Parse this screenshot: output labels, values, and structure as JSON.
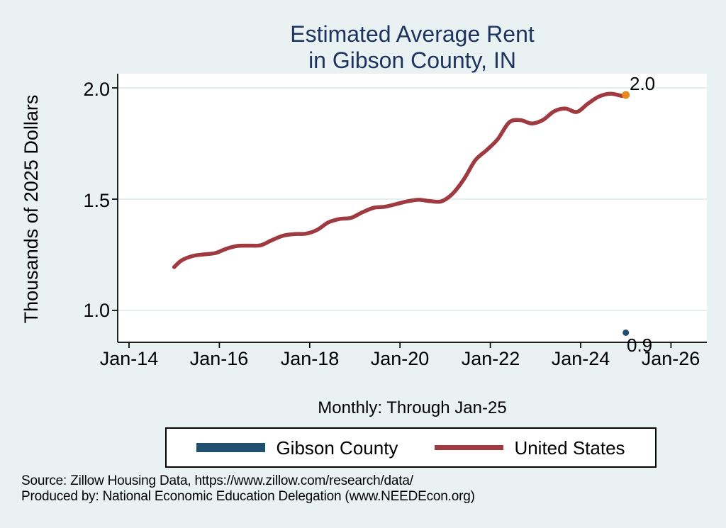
{
  "title": {
    "line1": "Estimated Average Rent",
    "line2": "in Gibson County, IN"
  },
  "subtitle": "Monthly: Through Jan-25",
  "y_axis": {
    "label": "Thousands of 2025 Dollars",
    "ticks": [
      "2.0",
      "1.5",
      "1.0"
    ]
  },
  "x_axis": {
    "ticks": [
      "Jan-14",
      "Jan-16",
      "Jan-18",
      "Jan-20",
      "Jan-22",
      "Jan-24",
      "Jan-26"
    ]
  },
  "legend": {
    "items": [
      {
        "label": "Gibson County",
        "color": "#204f70"
      },
      {
        "label": "United States",
        "color": "#9e3a40"
      }
    ]
  },
  "source": {
    "line1": "Source: Zillow Housing Data, https://www.zillow.com/research/data/",
    "line2": "Produced by: National Economic Education Delegation (www.NEEDEcon.org)"
  },
  "colors": {
    "background": "#e9f1f2",
    "plot_background": "#ffffff",
    "gridline": "#e4eef1",
    "axis": "#000000",
    "title_navy": "#1e3460",
    "united_states_line": "#9e3a40",
    "gibson_county_marker": "#204f70",
    "last_point_marker": "#e8881e"
  },
  "chart_data": {
    "type": "line",
    "title": "Estimated Average Rent in Gibson County, IN",
    "subtitle": "Monthly: Through Jan-25",
    "xlabel": "",
    "ylabel": "Thousands of 2025 Dollars",
    "x_tick_labels": [
      "Jan-14",
      "Jan-16",
      "Jan-18",
      "Jan-20",
      "Jan-22",
      "Jan-24",
      "Jan-26"
    ],
    "y_gridlines": [
      1.0,
      1.5,
      2.0
    ],
    "ylim": [
      0.86,
      2.06
    ],
    "grid": true,
    "legend_position": "bottom",
    "end_labels": {
      "united_states": "2.0",
      "gibson_county": "0.9"
    },
    "series": [
      {
        "name": "United States",
        "color": "#9e3a40",
        "months": [
          "2015-01",
          "2015-03",
          "2015-06",
          "2015-09",
          "2015-12",
          "2016-03",
          "2016-06",
          "2016-09",
          "2016-12",
          "2017-03",
          "2017-06",
          "2017-09",
          "2017-12",
          "2018-03",
          "2018-06",
          "2018-09",
          "2018-12",
          "2019-03",
          "2019-06",
          "2019-09",
          "2019-12",
          "2020-03",
          "2020-06",
          "2020-09",
          "2020-12",
          "2021-03",
          "2021-06",
          "2021-09",
          "2021-12",
          "2022-03",
          "2022-06",
          "2022-09",
          "2022-12",
          "2023-03",
          "2023-06",
          "2023-09",
          "2023-12",
          "2024-03",
          "2024-06",
          "2024-09",
          "2024-12",
          "2025-01"
        ],
        "values": [
          1.195,
          1.225,
          1.245,
          1.252,
          1.258,
          1.278,
          1.29,
          1.291,
          1.293,
          1.316,
          1.336,
          1.343,
          1.345,
          1.362,
          1.396,
          1.411,
          1.416,
          1.441,
          1.461,
          1.466,
          1.478,
          1.49,
          1.497,
          1.491,
          1.49,
          1.525,
          1.59,
          1.675,
          1.72,
          1.77,
          1.845,
          1.855,
          1.84,
          1.856,
          1.895,
          1.907,
          1.892,
          1.93,
          1.962,
          1.974,
          1.964,
          1.968
        ]
      },
      {
        "name": "Gibson County",
        "color": "#204f70",
        "months": [
          "2025-01"
        ],
        "values": [
          0.9
        ]
      }
    ]
  }
}
